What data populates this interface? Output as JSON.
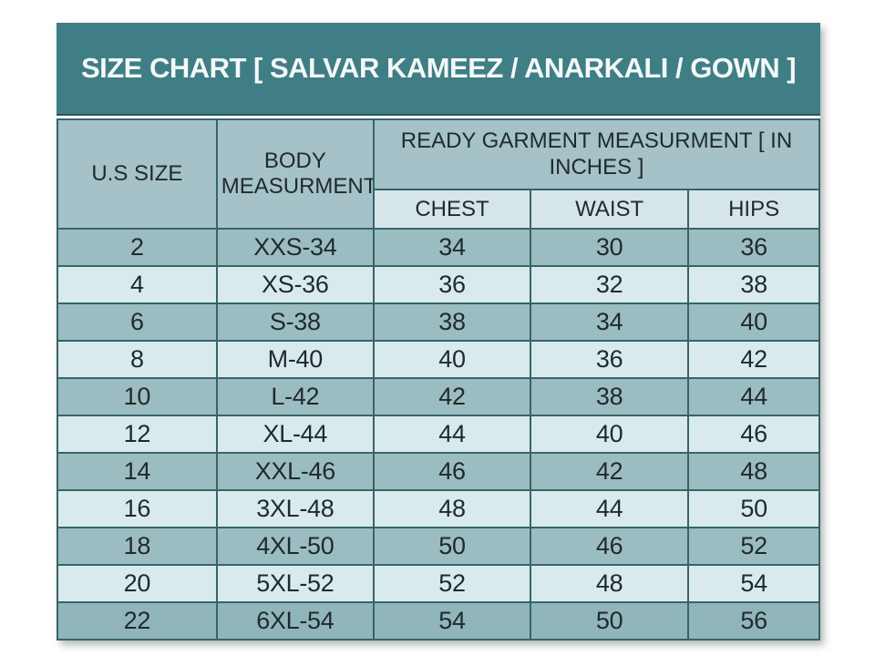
{
  "title": "SIZE CHART [ SALVAR KAMEEZ / ANARKALI / GOWN ]",
  "table": {
    "col_us_size": "U.S SIZE",
    "col_body": "BODY MEASURMENT",
    "group_header": "READY GARMENT MEASURMENT [ IN INCHES ]",
    "sub_headers": [
      "CHEST",
      "WAIST",
      "HIPS"
    ],
    "rows": [
      {
        "us_size": "2",
        "body": "XXS-34",
        "chest": "34",
        "waist": "30",
        "hips": "36"
      },
      {
        "us_size": "4",
        "body": "XS-36",
        "chest": "36",
        "waist": "32",
        "hips": "38"
      },
      {
        "us_size": "6",
        "body": "S-38",
        "chest": "38",
        "waist": "34",
        "hips": "40"
      },
      {
        "us_size": "8",
        "body": "M-40",
        "chest": "40",
        "waist": "36",
        "hips": "42"
      },
      {
        "us_size": "10",
        "body": "L-42",
        "chest": "42",
        "waist": "38",
        "hips": "44"
      },
      {
        "us_size": "12",
        "body": "XL-44",
        "chest": "44",
        "waist": "40",
        "hips": "46"
      },
      {
        "us_size": "14",
        "body": "XXL-46",
        "chest": "46",
        "waist": "42",
        "hips": "48"
      },
      {
        "us_size": "16",
        "body": "3XL-48",
        "chest": "48",
        "waist": "44",
        "hips": "50"
      },
      {
        "us_size": "18",
        "body": "4XL-50",
        "chest": "50",
        "waist": "46",
        "hips": "52"
      },
      {
        "us_size": "20",
        "body": "5XL-52",
        "chest": "52",
        "waist": "48",
        "hips": "54"
      },
      {
        "us_size": "22",
        "body": "6XL-54",
        "chest": "54",
        "waist": "50",
        "hips": "56"
      }
    ]
  },
  "colors": {
    "title_bg": "#3f7e85",
    "title_text": "#f4f8f8",
    "header_bg": "#a4c2c7",
    "subheader_bg": "#d6e6e8",
    "row_dark": "#9bbdc1",
    "row_light": "#d9eaec",
    "row_last": "#90b5bb",
    "border": "#36646b",
    "text": "#1f2a2d"
  }
}
